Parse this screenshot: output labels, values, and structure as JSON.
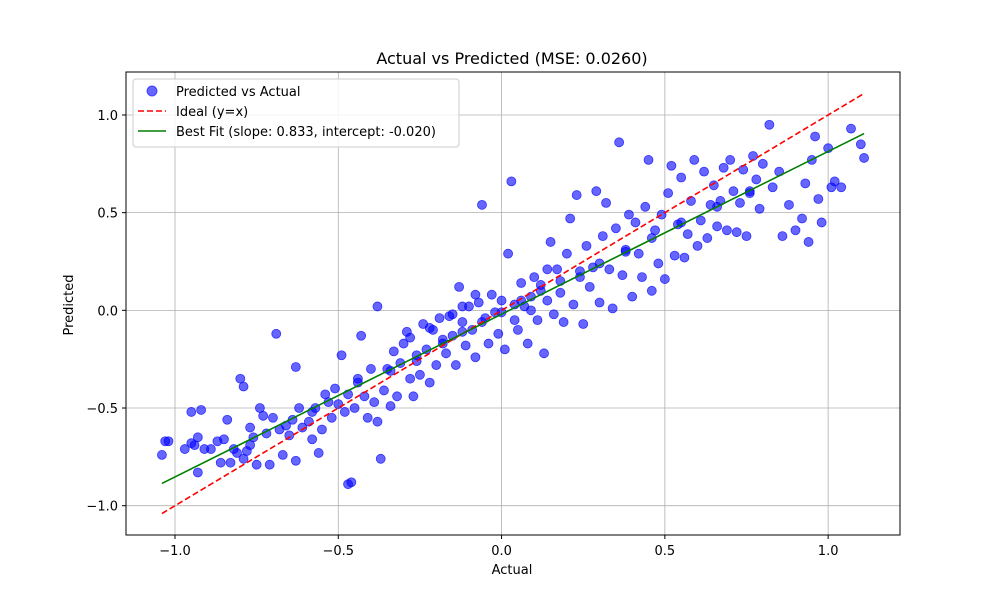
{
  "chart_data": {
    "type": "scatter",
    "title": "Actual vs Predicted (MSE: 0.0260)",
    "xlabel": "Actual",
    "ylabel": "Predicted",
    "xlim": [
      -1.15,
      1.22
    ],
    "ylim": [
      -1.15,
      1.22
    ],
    "xticks": [
      -1.0,
      -0.5,
      0.0,
      0.5,
      1.0
    ],
    "yticks": [
      -1.0,
      -0.5,
      0.0,
      0.5,
      1.0
    ],
    "xtick_labels": [
      "−1.0",
      "−0.5",
      "0.0",
      "0.5",
      "1.0"
    ],
    "ytick_labels": [
      "−1.0",
      "−0.5",
      "0.0",
      "0.5",
      "1.0"
    ],
    "grid": true,
    "legend_position": "top-left",
    "colors": {
      "points": "#0000ff",
      "ideal": "#ff0000",
      "fit": "#008000"
    },
    "series": [
      {
        "name": "Predicted vs Actual",
        "kind": "scatter",
        "points": [
          [
            -1.04,
            -0.74
          ],
          [
            -1.03,
            -0.67
          ],
          [
            -1.02,
            -0.67
          ],
          [
            -0.95,
            -0.52
          ],
          [
            -0.95,
            -0.68
          ],
          [
            -0.94,
            -0.69
          ],
          [
            -0.93,
            -0.65
          ],
          [
            -0.93,
            -0.83
          ],
          [
            -0.92,
            -0.51
          ],
          [
            -0.91,
            -0.71
          ],
          [
            -0.89,
            -0.71
          ],
          [
            -0.87,
            -0.67
          ],
          [
            -0.86,
            -0.78
          ],
          [
            -0.85,
            -0.66
          ],
          [
            -0.84,
            -0.56
          ],
          [
            -0.83,
            -0.78
          ],
          [
            -0.82,
            -0.71
          ],
          [
            -0.81,
            -0.73
          ],
          [
            -0.8,
            -0.35
          ],
          [
            -0.79,
            -0.39
          ],
          [
            -0.79,
            -0.76
          ],
          [
            -0.78,
            -0.72
          ],
          [
            -0.77,
            -0.6
          ],
          [
            -0.76,
            -0.65
          ],
          [
            -0.75,
            -0.79
          ],
          [
            -0.74,
            -0.5
          ],
          [
            -0.73,
            -0.54
          ],
          [
            -0.72,
            -0.63
          ],
          [
            -0.71,
            -0.79
          ],
          [
            -0.7,
            -0.55
          ],
          [
            -0.69,
            -0.12
          ],
          [
            -0.68,
            -0.61
          ],
          [
            -0.67,
            -0.74
          ],
          [
            -0.66,
            -0.59
          ],
          [
            -0.65,
            -0.64
          ],
          [
            -0.64,
            -0.56
          ],
          [
            -0.63,
            -0.77
          ],
          [
            -0.63,
            -0.29
          ],
          [
            -0.62,
            -0.5
          ],
          [
            -0.61,
            -0.6
          ],
          [
            -0.59,
            -0.57
          ],
          [
            -0.58,
            -0.66
          ],
          [
            -0.57,
            -0.5
          ],
          [
            -0.56,
            -0.73
          ],
          [
            -0.55,
            -0.61
          ],
          [
            -0.54,
            -0.43
          ],
          [
            -0.53,
            -0.47
          ],
          [
            -0.52,
            -0.55
          ],
          [
            -0.51,
            -0.4
          ],
          [
            -0.5,
            -0.48
          ],
          [
            -0.49,
            -0.23
          ],
          [
            -0.48,
            -0.52
          ],
          [
            -0.47,
            -0.43
          ],
          [
            -0.47,
            -0.89
          ],
          [
            -0.46,
            -0.88
          ],
          [
            -0.45,
            -0.5
          ],
          [
            -0.44,
            -0.35
          ],
          [
            -0.43,
            -0.13
          ],
          [
            -0.42,
            -0.44
          ],
          [
            -0.41,
            -0.55
          ],
          [
            -0.4,
            -0.3
          ],
          [
            -0.39,
            -0.47
          ],
          [
            -0.38,
            -0.57
          ],
          [
            -0.38,
            0.02
          ],
          [
            -0.37,
            -0.76
          ],
          [
            -0.36,
            -0.41
          ],
          [
            -0.35,
            -0.3
          ],
          [
            -0.34,
            -0.49
          ],
          [
            -0.33,
            -0.21
          ],
          [
            -0.32,
            -0.44
          ],
          [
            -0.31,
            -0.27
          ],
          [
            -0.3,
            -0.17
          ],
          [
            -0.29,
            -0.11
          ],
          [
            -0.28,
            -0.35
          ],
          [
            -0.27,
            -0.44
          ],
          [
            -0.26,
            -0.23
          ],
          [
            -0.25,
            -0.33
          ],
          [
            -0.24,
            -0.07
          ],
          [
            -0.23,
            -0.2
          ],
          [
            -0.22,
            -0.37
          ],
          [
            -0.21,
            -0.1
          ],
          [
            -0.2,
            -0.28
          ],
          [
            -0.19,
            -0.04
          ],
          [
            -0.18,
            -0.15
          ],
          [
            -0.17,
            -0.22
          ],
          [
            -0.16,
            -0.03
          ],
          [
            -0.15,
            -0.13
          ],
          [
            -0.14,
            -0.28
          ],
          [
            -0.13,
            0.12
          ],
          [
            -0.12,
            -0.06
          ],
          [
            -0.11,
            -0.18
          ],
          [
            -0.1,
            0.02
          ],
          [
            -0.09,
            -0.1
          ],
          [
            -0.08,
            -0.24
          ],
          [
            -0.07,
            0.04
          ],
          [
            -0.06,
            0.54
          ],
          [
            -0.05,
            -0.04
          ],
          [
            -0.04,
            -0.17
          ],
          [
            -0.03,
            0.08
          ],
          [
            -0.02,
            -0.01
          ],
          [
            -0.01,
            -0.12
          ],
          [
            0.0,
            0.05
          ],
          [
            0.01,
            -0.2
          ],
          [
            0.02,
            0.29
          ],
          [
            0.03,
            0.66
          ],
          [
            0.04,
            0.03
          ],
          [
            0.05,
            -0.1
          ],
          [
            0.06,
            0.14
          ],
          [
            0.07,
            0.02
          ],
          [
            0.08,
            -0.17
          ],
          [
            0.09,
            0.07
          ],
          [
            0.1,
            0.17
          ],
          [
            0.11,
            -0.05
          ],
          [
            0.12,
            0.13
          ],
          [
            0.13,
            -0.22
          ],
          [
            0.14,
            0.05
          ],
          [
            0.15,
            0.35
          ],
          [
            0.16,
            -0.02
          ],
          [
            0.17,
            0.21
          ],
          [
            0.18,
            0.09
          ],
          [
            0.19,
            -0.06
          ],
          [
            0.2,
            0.29
          ],
          [
            0.21,
            0.47
          ],
          [
            0.22,
            0.03
          ],
          [
            0.23,
            0.59
          ],
          [
            0.24,
            0.17
          ],
          [
            0.25,
            -0.07
          ],
          [
            0.26,
            0.33
          ],
          [
            0.27,
            0.12
          ],
          [
            0.28,
            0.22
          ],
          [
            0.29,
            0.61
          ],
          [
            0.3,
            0.04
          ],
          [
            0.31,
            0.38
          ],
          [
            0.32,
            0.55
          ],
          [
            0.33,
            0.21
          ],
          [
            0.34,
            0.01
          ],
          [
            0.35,
            0.42
          ],
          [
            0.36,
            0.86
          ],
          [
            0.37,
            0.18
          ],
          [
            0.38,
            0.3
          ],
          [
            0.39,
            0.49
          ],
          [
            0.4,
            0.07
          ],
          [
            0.41,
            0.45
          ],
          [
            0.42,
            0.29
          ],
          [
            0.43,
            0.17
          ],
          [
            0.44,
            0.53
          ],
          [
            0.45,
            0.77
          ],
          [
            0.46,
            0.1
          ],
          [
            0.47,
            0.41
          ],
          [
            0.48,
            0.24
          ],
          [
            0.49,
            0.49
          ],
          [
            0.5,
            0.16
          ],
          [
            0.51,
            0.6
          ],
          [
            0.52,
            0.74
          ],
          [
            0.53,
            0.28
          ],
          [
            0.54,
            0.44
          ],
          [
            0.55,
            0.68
          ],
          [
            0.56,
            0.27
          ],
          [
            0.57,
            0.39
          ],
          [
            0.58,
            0.56
          ],
          [
            0.59,
            0.77
          ],
          [
            0.6,
            0.33
          ],
          [
            0.61,
            0.46
          ],
          [
            0.62,
            0.71
          ],
          [
            0.63,
            0.37
          ],
          [
            0.64,
            0.54
          ],
          [
            0.65,
            0.64
          ],
          [
            0.66,
            0.43
          ],
          [
            0.67,
            0.56
          ],
          [
            0.68,
            0.73
          ],
          [
            0.69,
            0.41
          ],
          [
            0.7,
            0.77
          ],
          [
            0.71,
            0.61
          ],
          [
            0.72,
            0.4
          ],
          [
            0.73,
            0.55
          ],
          [
            0.74,
            0.72
          ],
          [
            0.75,
            0.38
          ],
          [
            0.76,
            0.6
          ],
          [
            0.77,
            0.79
          ],
          [
            0.78,
            0.67
          ],
          [
            0.79,
            0.52
          ],
          [
            0.8,
            0.75
          ],
          [
            0.82,
            0.95
          ],
          [
            0.83,
            0.63
          ],
          [
            0.85,
            0.71
          ],
          [
            0.86,
            0.38
          ],
          [
            0.88,
            0.54
          ],
          [
            0.9,
            0.41
          ],
          [
            0.92,
            0.47
          ],
          [
            0.93,
            0.65
          ],
          [
            0.94,
            0.35
          ],
          [
            0.95,
            0.77
          ],
          [
            0.96,
            0.89
          ],
          [
            0.97,
            0.57
          ],
          [
            0.98,
            0.45
          ],
          [
            1.0,
            0.83
          ],
          [
            1.01,
            0.63
          ],
          [
            1.02,
            0.66
          ],
          [
            1.04,
            0.63
          ],
          [
            1.07,
            0.93
          ],
          [
            1.1,
            0.85
          ],
          [
            1.11,
            0.78
          ],
          [
            -0.97,
            -0.71
          ],
          [
            -0.77,
            -0.69
          ],
          [
            -0.58,
            -0.52
          ],
          [
            -0.44,
            -0.37
          ],
          [
            -0.34,
            -0.31
          ],
          [
            -0.26,
            -0.26
          ],
          [
            -0.18,
            -0.17
          ],
          [
            -0.12,
            -0.11
          ],
          [
            -0.06,
            -0.06
          ],
          [
            0.0,
            -0.01
          ],
          [
            0.06,
            0.05
          ],
          [
            0.12,
            0.1
          ],
          [
            0.18,
            0.15
          ],
          [
            0.24,
            0.2
          ],
          [
            0.3,
            0.24
          ],
          [
            0.38,
            0.31
          ],
          [
            0.46,
            0.37
          ],
          [
            0.55,
            0.45
          ],
          [
            0.66,
            0.53
          ],
          [
            0.76,
            0.61
          ],
          [
            -0.15,
            -0.02
          ],
          [
            -0.12,
            0.02
          ],
          [
            -0.08,
            0.08
          ],
          [
            0.04,
            -0.05
          ],
          [
            0.09,
            0.0
          ],
          [
            0.14,
            0.21
          ],
          [
            -0.22,
            -0.09
          ],
          [
            -0.28,
            -0.14
          ]
        ]
      },
      {
        "name": "Ideal (y=x)",
        "kind": "line",
        "style": "dashed",
        "points": [
          [
            -1.04,
            -1.04
          ],
          [
            1.11,
            1.11
          ]
        ]
      },
      {
        "name": "Best Fit (slope: 0.833, intercept: -0.020)",
        "kind": "line",
        "style": "solid",
        "points": [
          [
            -1.04,
            -0.886
          ],
          [
            1.11,
            0.905
          ]
        ]
      }
    ]
  }
}
